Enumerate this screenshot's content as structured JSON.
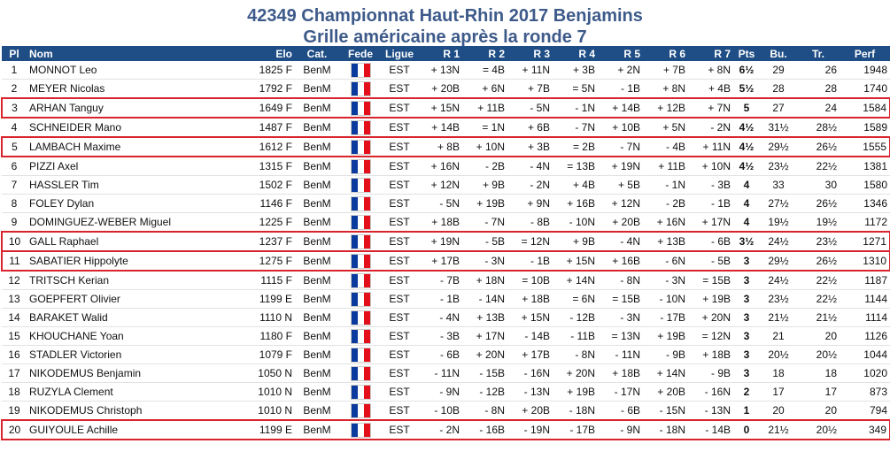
{
  "header": {
    "title_line1": "42349 Championnat Haut-Rhin 2017 Benjamins",
    "title_line2": "Grille américaine après la ronde 7"
  },
  "table": {
    "columns": [
      "Pl",
      "Nom",
      "Elo",
      "Cat.",
      "Fede",
      "Ligue",
      "R 1",
      "R 2",
      "R 3",
      "R 4",
      "R 5",
      "R 6",
      "R 7",
      "Pts",
      "Bu.",
      "Tr.",
      "Perf"
    ],
    "rows": [
      [
        "1",
        "MONNOT Leo",
        "1825 F",
        "BenM",
        "EST",
        "+ 13N",
        "= 4B",
        "+ 11N",
        "+ 3B",
        "+ 2N",
        "+ 7B",
        "+ 8N",
        "6½",
        "29",
        "26",
        "1948"
      ],
      [
        "2",
        "MEYER Nicolas",
        "1792 F",
        "BenM",
        "EST",
        "+ 20B",
        "+ 6N",
        "+ 7B",
        "= 5N",
        "- 1B",
        "+ 8N",
        "+ 4B",
        "5½",
        "28",
        "28",
        "1740"
      ],
      [
        "3",
        "ARHAN Tanguy",
        "1649 F",
        "BenM",
        "EST",
        "+ 15N",
        "+ 11B",
        "- 5N",
        "- 1N",
        "+ 14B",
        "+ 12B",
        "+ 7N",
        "5",
        "27",
        "24",
        "1584"
      ],
      [
        "4",
        "SCHNEIDER Mano",
        "1487 F",
        "BenM",
        "EST",
        "+ 14B",
        "= 1N",
        "+ 6B",
        "- 7N",
        "+ 10B",
        "+ 5N",
        "- 2N",
        "4½",
        "31½",
        "28½",
        "1589"
      ],
      [
        "5",
        "LAMBACH Maxime",
        "1612 F",
        "BenM",
        "EST",
        "+ 8B",
        "+ 10N",
        "+ 3B",
        "= 2B",
        "- 7N",
        "- 4B",
        "+ 11N",
        "4½",
        "29½",
        "26½",
        "1555"
      ],
      [
        "6",
        "PIZZI Axel",
        "1315 F",
        "BenM",
        "EST",
        "+ 16N",
        "- 2B",
        "- 4N",
        "= 13B",
        "+ 19N",
        "+ 11B",
        "+ 10N",
        "4½",
        "23½",
        "22½",
        "1381"
      ],
      [
        "7",
        "HASSLER Tim",
        "1502 F",
        "BenM",
        "EST",
        "+ 12N",
        "+ 9B",
        "- 2N",
        "+ 4B",
        "+ 5B",
        "- 1N",
        "- 3B",
        "4",
        "33",
        "30",
        "1580"
      ],
      [
        "8",
        "FOLEY Dylan",
        "1146 F",
        "BenM",
        "EST",
        "- 5N",
        "+ 19B",
        "+ 9N",
        "+ 16B",
        "+ 12N",
        "- 2B",
        "- 1B",
        "4",
        "27½",
        "26½",
        "1346"
      ],
      [
        "9",
        "DOMINGUEZ-WEBER Miguel",
        "1225 F",
        "BenM",
        "EST",
        "+ 18B",
        "- 7N",
        "- 8B",
        "- 10N",
        "+ 20B",
        "+ 16N",
        "+ 17N",
        "4",
        "19½",
        "19½",
        "1172"
      ],
      [
        "10",
        "GALL Raphael",
        "1237 F",
        "BenM",
        "EST",
        "+ 19N",
        "- 5B",
        "= 12N",
        "+ 9B",
        "- 4N",
        "+ 13B",
        "- 6B",
        "3½",
        "24½",
        "23½",
        "1271"
      ],
      [
        "11",
        "SABATIER Hippolyte",
        "1275 F",
        "BenM",
        "EST",
        "+ 17B",
        "- 3N",
        "- 1B",
        "+ 15N",
        "+ 16B",
        "- 6N",
        "- 5B",
        "3",
        "29½",
        "26½",
        "1310"
      ],
      [
        "12",
        "TRITSCH Kerian",
        "1115 F",
        "BenM",
        "EST",
        "- 7B",
        "+ 18N",
        "= 10B",
        "+ 14N",
        "- 8N",
        "- 3N",
        "= 15B",
        "3",
        "24½",
        "22½",
        "1187"
      ],
      [
        "13",
        "GOEPFERT Olivier",
        "1199 E",
        "BenM",
        "EST",
        "- 1B",
        "- 14N",
        "+ 18B",
        "= 6N",
        "= 15B",
        "- 10N",
        "+ 19B",
        "3",
        "23½",
        "22½",
        "1144"
      ],
      [
        "14",
        "BARAKET Walid",
        "1110 N",
        "BenM",
        "EST",
        "- 4N",
        "+ 13B",
        "+ 15N",
        "- 12B",
        "- 3N",
        "- 17B",
        "+ 20N",
        "3",
        "21½",
        "21½",
        "1114"
      ],
      [
        "15",
        "KHOUCHANE Yoan",
        "1180 F",
        "BenM",
        "EST",
        "- 3B",
        "+ 17N",
        "- 14B",
        "- 11B",
        "= 13N",
        "+ 19B",
        "= 12N",
        "3",
        "21",
        "20",
        "1126"
      ],
      [
        "16",
        "STADLER Victorien",
        "1079 F",
        "BenM",
        "EST",
        "- 6B",
        "+ 20N",
        "+ 17B",
        "- 8N",
        "- 11N",
        "- 9B",
        "+ 18B",
        "3",
        "20½",
        "20½",
        "1044"
      ],
      [
        "17",
        "NIKODEMUS Benjamin",
        "1050 N",
        "BenM",
        "EST",
        "- 11N",
        "- 15B",
        "- 16N",
        "+ 20N",
        "+ 18B",
        "+ 14N",
        "- 9B",
        "3",
        "18",
        "18",
        "1020"
      ],
      [
        "18",
        "RUZYLA Clement",
        "1010 N",
        "BenM",
        "EST",
        "- 9N",
        "- 12B",
        "- 13N",
        "+ 19B",
        "- 17N",
        "+ 20B",
        "- 16N",
        "2",
        "17",
        "17",
        "873"
      ],
      [
        "19",
        "NIKODEMUS Christoph",
        "1010 N",
        "BenM",
        "EST",
        "- 10B",
        "- 8N",
        "+ 20B",
        "- 18N",
        "- 6B",
        "- 15N",
        "- 13N",
        "1",
        "20",
        "20",
        "794"
      ],
      [
        "20",
        "GUIYOULE Achille",
        "1199 E",
        "BenM",
        "EST",
        "- 2N",
        "- 16B",
        "- 19N",
        "- 17B",
        "- 9N",
        "- 18N",
        "- 14B",
        "0",
        "21½",
        "20½",
        "349"
      ]
    ]
  }
}
